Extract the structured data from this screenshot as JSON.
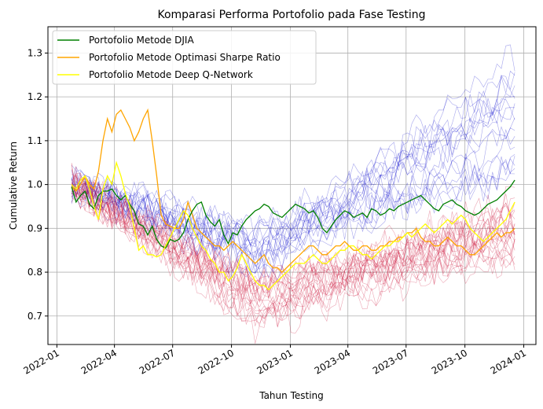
{
  "chart_data": {
    "type": "line",
    "title": "Komparasi Performa Portofolio pada Fase Testing",
    "xlabel": "Tahun Testing",
    "ylabel": "Cumulative Return",
    "x_range": [
      "2021-12-18",
      "2024-01-20"
    ],
    "ylim": [
      0.635,
      1.36
    ],
    "grid": true,
    "legend_position": "top-left",
    "x_ticks": [
      "2022-01",
      "2022-04",
      "2022-07",
      "2022-10",
      "2023-01",
      "2023-04",
      "2023-07",
      "2023-10",
      "2024-01"
    ],
    "y_ticks": [
      0.7,
      0.8,
      0.9,
      1.0,
      1.1,
      1.2,
      1.3
    ],
    "x_dates": [
      "2022-01-24",
      "2022-01-31",
      "2022-02-07",
      "2022-02-14",
      "2022-02-21",
      "2022-02-28",
      "2022-03-07",
      "2022-03-14",
      "2022-03-21",
      "2022-03-28",
      "2022-04-04",
      "2022-04-11",
      "2022-04-18",
      "2022-04-25",
      "2022-05-02",
      "2022-05-09",
      "2022-05-16",
      "2022-05-23",
      "2022-05-30",
      "2022-06-06",
      "2022-06-13",
      "2022-06-20",
      "2022-06-27",
      "2022-07-04",
      "2022-07-11",
      "2022-07-18",
      "2022-07-25",
      "2022-08-01",
      "2022-08-08",
      "2022-08-15",
      "2022-08-22",
      "2022-08-29",
      "2022-09-05",
      "2022-09-12",
      "2022-09-19",
      "2022-09-26",
      "2022-10-03",
      "2022-10-10",
      "2022-10-17",
      "2022-10-24",
      "2022-10-31",
      "2022-11-07",
      "2022-11-14",
      "2022-11-21",
      "2022-11-28",
      "2022-12-05",
      "2022-12-12",
      "2022-12-19",
      "2022-12-26",
      "2023-01-02",
      "2023-01-09",
      "2023-01-16",
      "2023-01-23",
      "2023-01-30",
      "2023-02-06",
      "2023-02-13",
      "2023-02-20",
      "2023-02-27",
      "2023-03-06",
      "2023-03-13",
      "2023-03-20",
      "2023-03-27",
      "2023-04-03",
      "2023-04-10",
      "2023-04-17",
      "2023-04-24",
      "2023-05-01",
      "2023-05-08",
      "2023-05-15",
      "2023-05-22",
      "2023-05-29",
      "2023-06-05",
      "2023-06-12",
      "2023-06-19",
      "2023-06-26",
      "2023-07-03",
      "2023-07-10",
      "2023-07-17",
      "2023-07-24",
      "2023-07-31",
      "2023-08-07",
      "2023-08-14",
      "2023-08-21",
      "2023-08-28",
      "2023-09-04",
      "2023-09-11",
      "2023-09-18",
      "2023-09-25",
      "2023-10-02",
      "2023-10-09",
      "2023-10-16",
      "2023-10-23",
      "2023-10-30",
      "2023-11-06",
      "2023-11-13",
      "2023-11-20",
      "2023-11-27",
      "2023-12-04",
      "2023-12-11",
      "2023-12-18"
    ],
    "series": [
      {
        "name": "Portofolio Metode DJIA",
        "color": "#008000",
        "values": [
          0.995,
          0.96,
          0.975,
          0.985,
          0.955,
          0.945,
          0.975,
          0.985,
          0.985,
          0.99,
          0.975,
          0.965,
          0.975,
          0.955,
          0.94,
          0.91,
          0.905,
          0.885,
          0.905,
          0.875,
          0.86,
          0.855,
          0.875,
          0.87,
          0.875,
          0.89,
          0.92,
          0.94,
          0.955,
          0.96,
          0.93,
          0.915,
          0.905,
          0.92,
          0.885,
          0.865,
          0.89,
          0.885,
          0.905,
          0.92,
          0.93,
          0.94,
          0.945,
          0.955,
          0.95,
          0.935,
          0.93,
          0.925,
          0.935,
          0.945,
          0.955,
          0.95,
          0.945,
          0.935,
          0.94,
          0.925,
          0.9,
          0.89,
          0.905,
          0.92,
          0.93,
          0.94,
          0.935,
          0.925,
          0.93,
          0.935,
          0.925,
          0.945,
          0.94,
          0.93,
          0.935,
          0.945,
          0.94,
          0.95,
          0.955,
          0.96,
          0.965,
          0.97,
          0.975,
          0.965,
          0.955,
          0.945,
          0.94,
          0.955,
          0.96,
          0.965,
          0.955,
          0.95,
          0.94,
          0.935,
          0.93,
          0.935,
          0.945,
          0.955,
          0.96,
          0.965,
          0.975,
          0.985,
          0.995,
          1.01
        ]
      },
      {
        "name": "Portofolio Metode Optimasi Sharpe Ratio",
        "color": "#FFA500",
        "values": [
          0.995,
          0.985,
          1.0,
          1.02,
          1.0,
          0.99,
          1.03,
          1.1,
          1.15,
          1.12,
          1.16,
          1.17,
          1.15,
          1.13,
          1.1,
          1.12,
          1.15,
          1.17,
          1.1,
          1.02,
          0.93,
          0.91,
          0.905,
          0.9,
          0.9,
          0.92,
          0.96,
          0.93,
          0.9,
          0.89,
          0.88,
          0.87,
          0.86,
          0.86,
          0.85,
          0.86,
          0.87,
          0.86,
          0.85,
          0.84,
          0.83,
          0.82,
          0.83,
          0.84,
          0.82,
          0.81,
          0.81,
          0.8,
          0.81,
          0.82,
          0.83,
          0.84,
          0.85,
          0.86,
          0.86,
          0.85,
          0.84,
          0.84,
          0.85,
          0.86,
          0.86,
          0.87,
          0.86,
          0.85,
          0.85,
          0.86,
          0.86,
          0.85,
          0.85,
          0.86,
          0.86,
          0.87,
          0.87,
          0.88,
          0.88,
          0.89,
          0.89,
          0.9,
          0.88,
          0.87,
          0.87,
          0.86,
          0.86,
          0.87,
          0.88,
          0.87,
          0.86,
          0.86,
          0.85,
          0.84,
          0.84,
          0.85,
          0.86,
          0.87,
          0.88,
          0.89,
          0.88,
          0.89,
          0.89,
          0.9
        ]
      },
      {
        "name": "Portofolio Metode Deep Q-Network",
        "color": "#FFFF00",
        "values": [
          1.0,
          0.99,
          1.01,
          1.02,
          0.99,
          0.95,
          0.92,
          0.99,
          1.02,
          1.0,
          1.05,
          1.02,
          0.98,
          0.95,
          0.9,
          0.85,
          0.86,
          0.84,
          0.84,
          0.835,
          0.84,
          0.86,
          0.88,
          0.9,
          0.92,
          0.94,
          0.93,
          0.9,
          0.88,
          0.86,
          0.85,
          0.83,
          0.82,
          0.8,
          0.8,
          0.78,
          0.79,
          0.81,
          0.84,
          0.82,
          0.8,
          0.78,
          0.77,
          0.77,
          0.76,
          0.77,
          0.78,
          0.79,
          0.8,
          0.81,
          0.82,
          0.82,
          0.82,
          0.83,
          0.84,
          0.83,
          0.82,
          0.82,
          0.83,
          0.84,
          0.85,
          0.85,
          0.86,
          0.86,
          0.85,
          0.84,
          0.84,
          0.83,
          0.84,
          0.85,
          0.86,
          0.86,
          0.87,
          0.87,
          0.88,
          0.89,
          0.88,
          0.89,
          0.9,
          0.91,
          0.9,
          0.89,
          0.9,
          0.91,
          0.92,
          0.91,
          0.92,
          0.93,
          0.92,
          0.9,
          0.89,
          0.88,
          0.87,
          0.88,
          0.89,
          0.9,
          0.91,
          0.92,
          0.94,
          0.96
        ]
      }
    ],
    "background_ensembles": [
      {
        "color": "#0000CC",
        "count": 18,
        "start": 1.0,
        "end_range": [
          1.0,
          1.32
        ],
        "low_range": [
          0.8,
          0.9
        ]
      },
      {
        "color": "#C8002A",
        "count": 22,
        "start": 1.0,
        "end_range": [
          0.82,
          1.0
        ],
        "low_range": [
          0.68,
          0.78
        ]
      }
    ]
  }
}
